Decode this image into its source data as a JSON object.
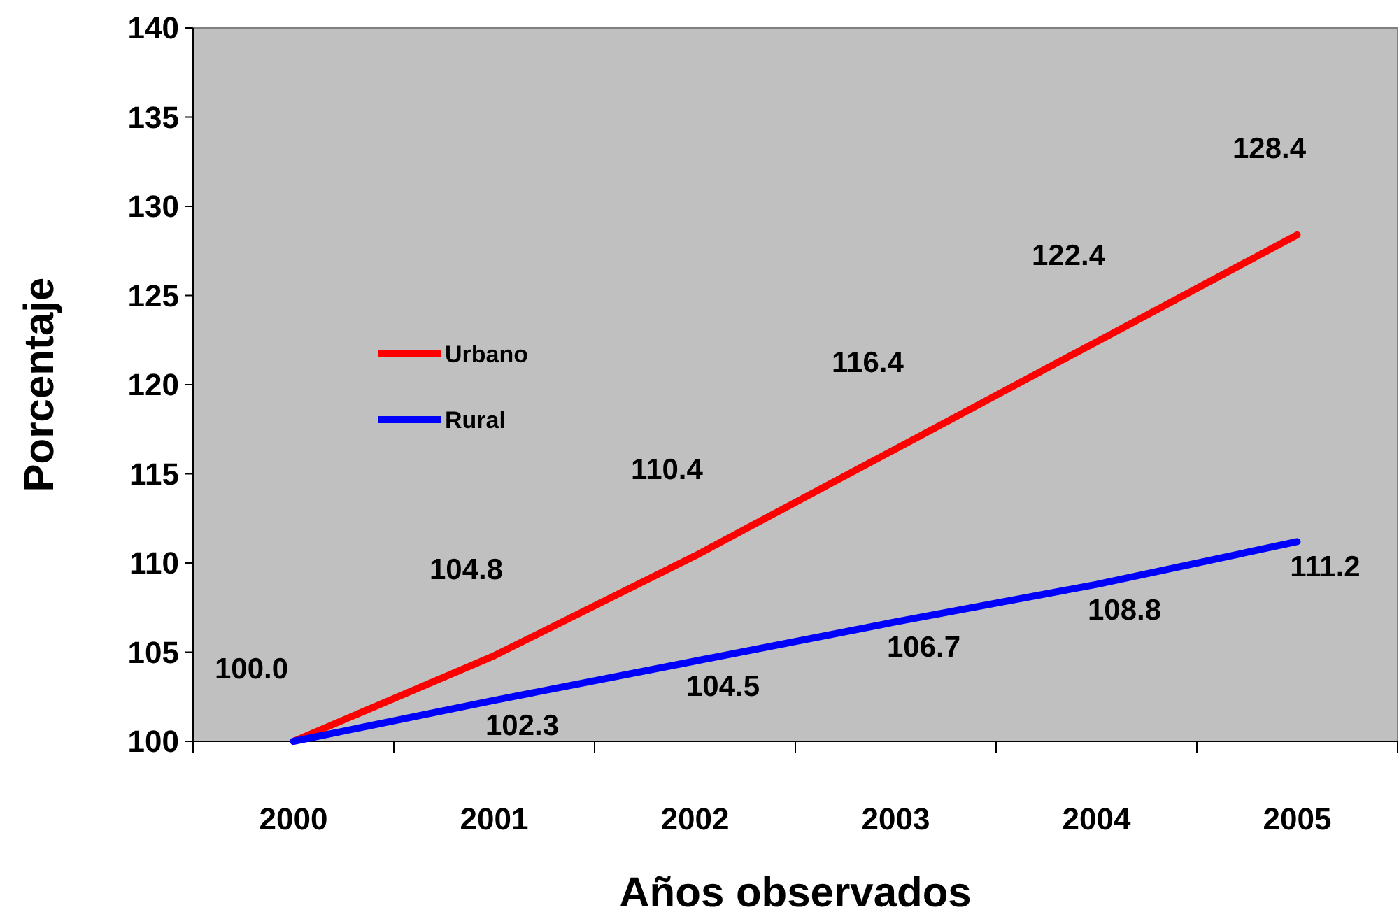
{
  "chart_data": {
    "type": "line",
    "xlabel": "Años observados",
    "ylabel": "Porcentaje",
    "categories": [
      "2000",
      "2001",
      "2002",
      "2003",
      "2004",
      "2005"
    ],
    "ylim": [
      100,
      140
    ],
    "yticks": [
      100,
      105,
      110,
      115,
      120,
      125,
      130,
      135,
      140
    ],
    "grid": false,
    "legend": "left",
    "marker": "none",
    "line_style": "solid",
    "series": [
      {
        "name": "Urbano",
        "color": "#ff0000",
        "values": [
          100.0,
          104.8,
          110.4,
          116.4,
          122.4,
          128.4
        ],
        "value_labels": [
          "100.0",
          "104.8",
          "110.4",
          "116.4",
          "122.4",
          "128.4"
        ]
      },
      {
        "name": "Rural",
        "color": "#0000ff",
        "values": [
          100.0,
          102.3,
          104.5,
          106.7,
          108.8,
          111.2
        ],
        "value_labels": [
          null,
          "102.3",
          "104.5",
          "106.7",
          "108.8",
          "111.2"
        ]
      }
    ]
  }
}
